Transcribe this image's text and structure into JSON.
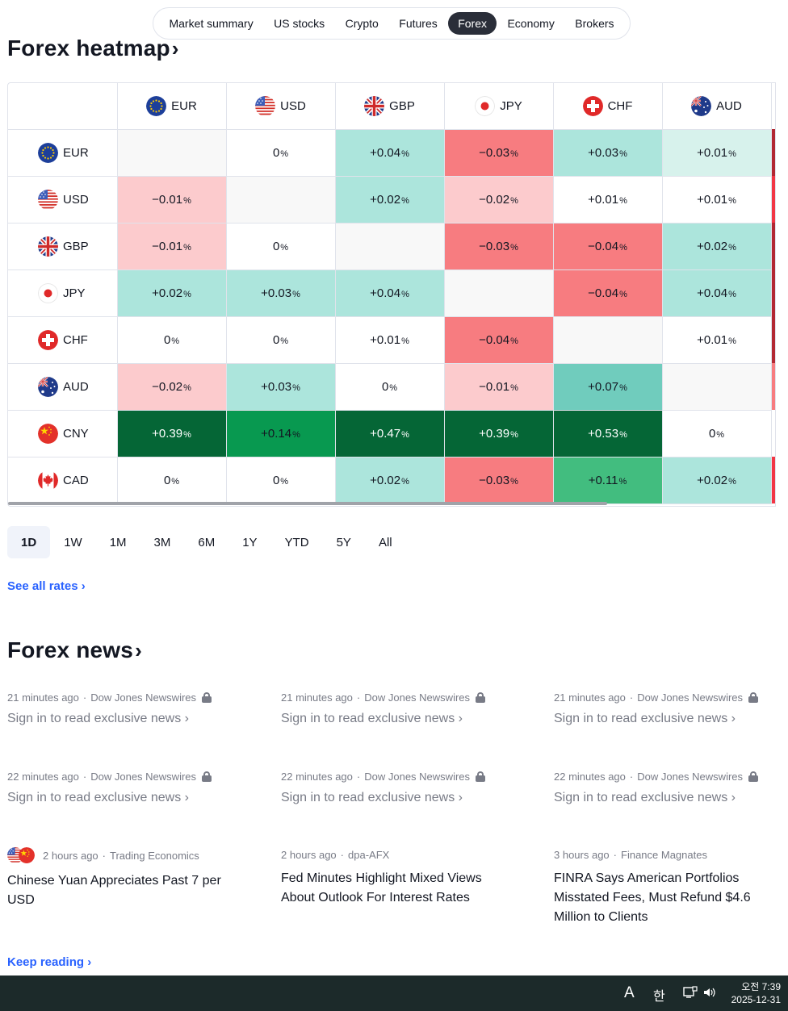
{
  "nav": {
    "tabs": [
      {
        "label": "Market summary"
      },
      {
        "label": "US stocks"
      },
      {
        "label": "Crypto"
      },
      {
        "label": "Futures"
      },
      {
        "label": "Forex",
        "active": true
      },
      {
        "label": "Economy"
      },
      {
        "label": "Brokers"
      }
    ]
  },
  "heatmap": {
    "title": "Forex heatmap",
    "title_chevron": "›",
    "percent_sign": "%",
    "columns": [
      "EUR",
      "USD",
      "GBP",
      "JPY",
      "CHF",
      "AUD"
    ],
    "rows": [
      {
        "currency": "EUR",
        "values": [
          "",
          "0",
          "+0.04",
          "−0.03",
          "+0.03",
          "+0.01"
        ],
        "strip": "#b22833"
      },
      {
        "currency": "USD",
        "values": [
          "−0.01",
          "",
          "+0.02",
          "−0.02",
          "+0.01",
          "+0.01"
        ],
        "strip": "#f23645"
      },
      {
        "currency": "GBP",
        "values": [
          "−0.01",
          "0",
          "",
          "−0.03",
          "−0.04",
          "+0.02"
        ],
        "strip": "#b22833"
      },
      {
        "currency": "JPY",
        "values": [
          "+0.02",
          "+0.03",
          "+0.04",
          "",
          "−0.04",
          "+0.04"
        ],
        "strip": "#b22833"
      },
      {
        "currency": "CHF",
        "values": [
          "0",
          "0",
          "+0.01",
          "−0.04",
          "",
          "+0.01"
        ],
        "strip": "#b22833"
      },
      {
        "currency": "AUD",
        "values": [
          "−0.02",
          "+0.03",
          "0",
          "−0.01",
          "+0.07",
          ""
        ],
        "strip": "#f77c80"
      },
      {
        "currency": "CNY",
        "values": [
          "+0.39",
          "+0.14",
          "+0.47",
          "+0.39",
          "+0.53",
          "0"
        ],
        "strip": "#ffffff"
      },
      {
        "currency": "CAD",
        "values": [
          "0",
          "0",
          "+0.02",
          "−0.03",
          "+0.11",
          "+0.02"
        ],
        "strip": "#f23645"
      }
    ],
    "colors": {
      "neg_strong": "#f77c80",
      "neg_light": "#fccbcd",
      "pos_light": "#ace5dc",
      "pos_faint": "#d7f2ec",
      "pos_mid": "#70ccbd",
      "pos_green": "#42bd7f",
      "pos_strong": "#056636",
      "pos_bright": "#089950",
      "neutral": "#ffffff",
      "self": "#f8f8f8"
    }
  },
  "timeframes": [
    "1D",
    "1W",
    "1M",
    "3M",
    "6M",
    "1Y",
    "YTD",
    "5Y",
    "All"
  ],
  "timeframe_active": "1D",
  "see_all_rates": "See all rates ›",
  "news": {
    "title": "Forex news",
    "title_chevron": "›",
    "locked_items": [
      {
        "time": "21 minutes ago",
        "source": "Dow Jones Newswires",
        "text": "Sign in to read exclusive news ›"
      },
      {
        "time": "21 minutes ago",
        "source": "Dow Jones Newswires",
        "text": "Sign in to read exclusive news ›"
      },
      {
        "time": "21 minutes ago",
        "source": "Dow Jones Newswires",
        "text": "Sign in to read exclusive news ›"
      },
      {
        "time": "22 minutes ago",
        "source": "Dow Jones Newswires",
        "text": "Sign in to read exclusive news ›"
      },
      {
        "time": "22 minutes ago",
        "source": "Dow Jones Newswires",
        "text": "Sign in to read exclusive news ›"
      },
      {
        "time": "22 minutes ago",
        "source": "Dow Jones Newswires",
        "text": "Sign in to read exclusive news ›"
      }
    ],
    "items": [
      {
        "time": "2 hours ago",
        "source": "Trading Economics",
        "headline": "Chinese Yuan Appreciates Past 7 per USD"
      },
      {
        "time": "2 hours ago",
        "source": "dpa-AFX",
        "headline": "Fed Minutes Highlight Mixed Views About Outlook For Interest Rates"
      },
      {
        "time": "3 hours ago",
        "source": "Finance Magnates",
        "headline": "FINRA Says American Portfolios Misstated Fees, Must Refund $4.6 Million to Clients"
      }
    ],
    "separator": "·",
    "keep_reading": "Keep reading ›"
  },
  "taskbar": {
    "ime_a": "A",
    "ime_han": "한",
    "time": "오전 7:39",
    "date": "2025-12-31"
  }
}
